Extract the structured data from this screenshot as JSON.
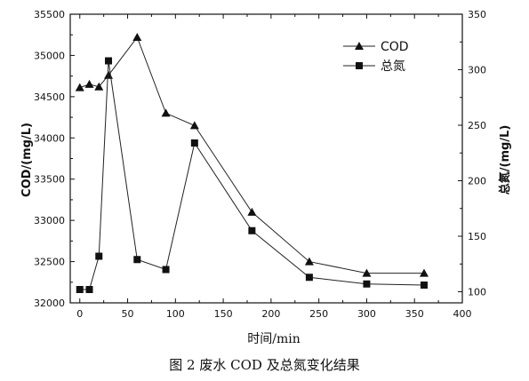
{
  "figure": {
    "caption": "图 2   废水 COD 及总氮变化结果"
  },
  "chart_data": {
    "type": "line",
    "xlabel": "时间/min",
    "ylabel_left": "COD/(mg/L)",
    "ylabel_right": "总氮/(mg/L)",
    "xlim": [
      -10,
      400
    ],
    "ylim_left": [
      32000,
      35500
    ],
    "ylim_right": [
      90,
      350
    ],
    "x_ticks": [
      0,
      50,
      100,
      150,
      200,
      250,
      300,
      350,
      400
    ],
    "y_left_ticks": [
      32000,
      32500,
      33000,
      33500,
      34000,
      34500,
      35000,
      35500
    ],
    "y_right_ticks": [
      100,
      150,
      200,
      250,
      300,
      350
    ],
    "legend_position": "top-right",
    "grid": false,
    "series": [
      {
        "name": "COD",
        "axis": "left",
        "marker": "triangle",
        "x": [
          0,
          10,
          20,
          30,
          60,
          90,
          120,
          180,
          240,
          300,
          360
        ],
        "y": [
          34610,
          34650,
          34620,
          34760,
          35220,
          34300,
          34150,
          33100,
          32500,
          32360,
          32360
        ]
      },
      {
        "name": "总氮",
        "axis": "right",
        "marker": "square",
        "x": [
          0,
          10,
          20,
          30,
          60,
          90,
          120,
          180,
          240,
          300,
          360
        ],
        "y": [
          102,
          102,
          132,
          308,
          129,
          120,
          234,
          155,
          113,
          107,
          106
        ]
      }
    ]
  }
}
